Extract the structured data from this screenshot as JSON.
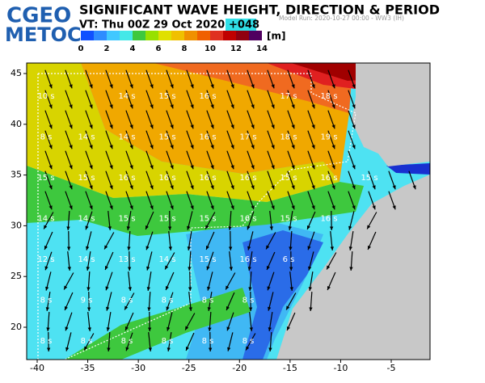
{
  "header": {
    "logo_top": "CGEO",
    "logo_bottom": "METOC",
    "title": "SIGNIFICANT WAVE HEIGHT, DIRECTION & PERIOD",
    "valid_time": "VT:  Thu 00Z 29 Oct 2020",
    "forecast_hour": "+048",
    "model_run": "Model Run: 2020-10-27 00:00 - WW3 (IH)"
  },
  "colorbar": {
    "unit": "[m]",
    "ticks": [
      0,
      2,
      4,
      6,
      8,
      10,
      12,
      14
    ]
  },
  "map": {
    "lon_ticks": [
      -40,
      -35,
      -30,
      -25,
      -20,
      -15,
      -10,
      -5
    ],
    "lat_ticks": [
      20,
      25,
      30,
      35,
      40,
      45
    ],
    "period_labels": [
      [
        "10 s",
        null,
        "14 s",
        "15 s",
        "16 s",
        null,
        "17 s",
        "18 s"
      ],
      [
        "8 s",
        "14 s",
        "14 s",
        "15 s",
        "16 s",
        "17 s",
        "18 s",
        "19 s"
      ],
      [
        "15 s",
        "15 s",
        "16 s",
        "16 s",
        "16 s",
        "16 s",
        "15 s",
        "16 s",
        "15 s"
      ],
      [
        "14 s",
        "14 s",
        "15 s",
        "15 s",
        "15 s",
        "16 s",
        "15 s",
        "16 s"
      ],
      [
        "12 s",
        "14 s",
        "13 s",
        "14 s",
        "15 s",
        "16 s",
        "6 s"
      ],
      [
        "8 s",
        "9 s",
        "8 s",
        "8 s",
        "8 s",
        "8 s"
      ],
      [
        "8 s",
        "8 s",
        "8 s",
        "8 s",
        "8 s",
        "8 s"
      ]
    ]
  }
}
